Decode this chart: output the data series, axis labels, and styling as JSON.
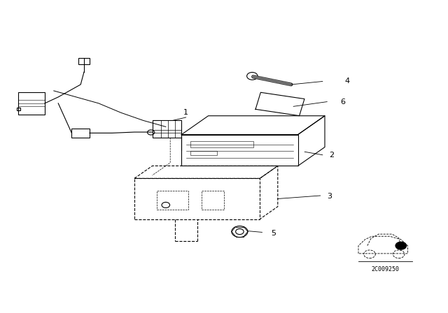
{
  "bg_color": "#ffffff",
  "line_color": "#000000",
  "figure_size": [
    6.4,
    4.48
  ],
  "dpi": 100,
  "watermark": "2C009250"
}
